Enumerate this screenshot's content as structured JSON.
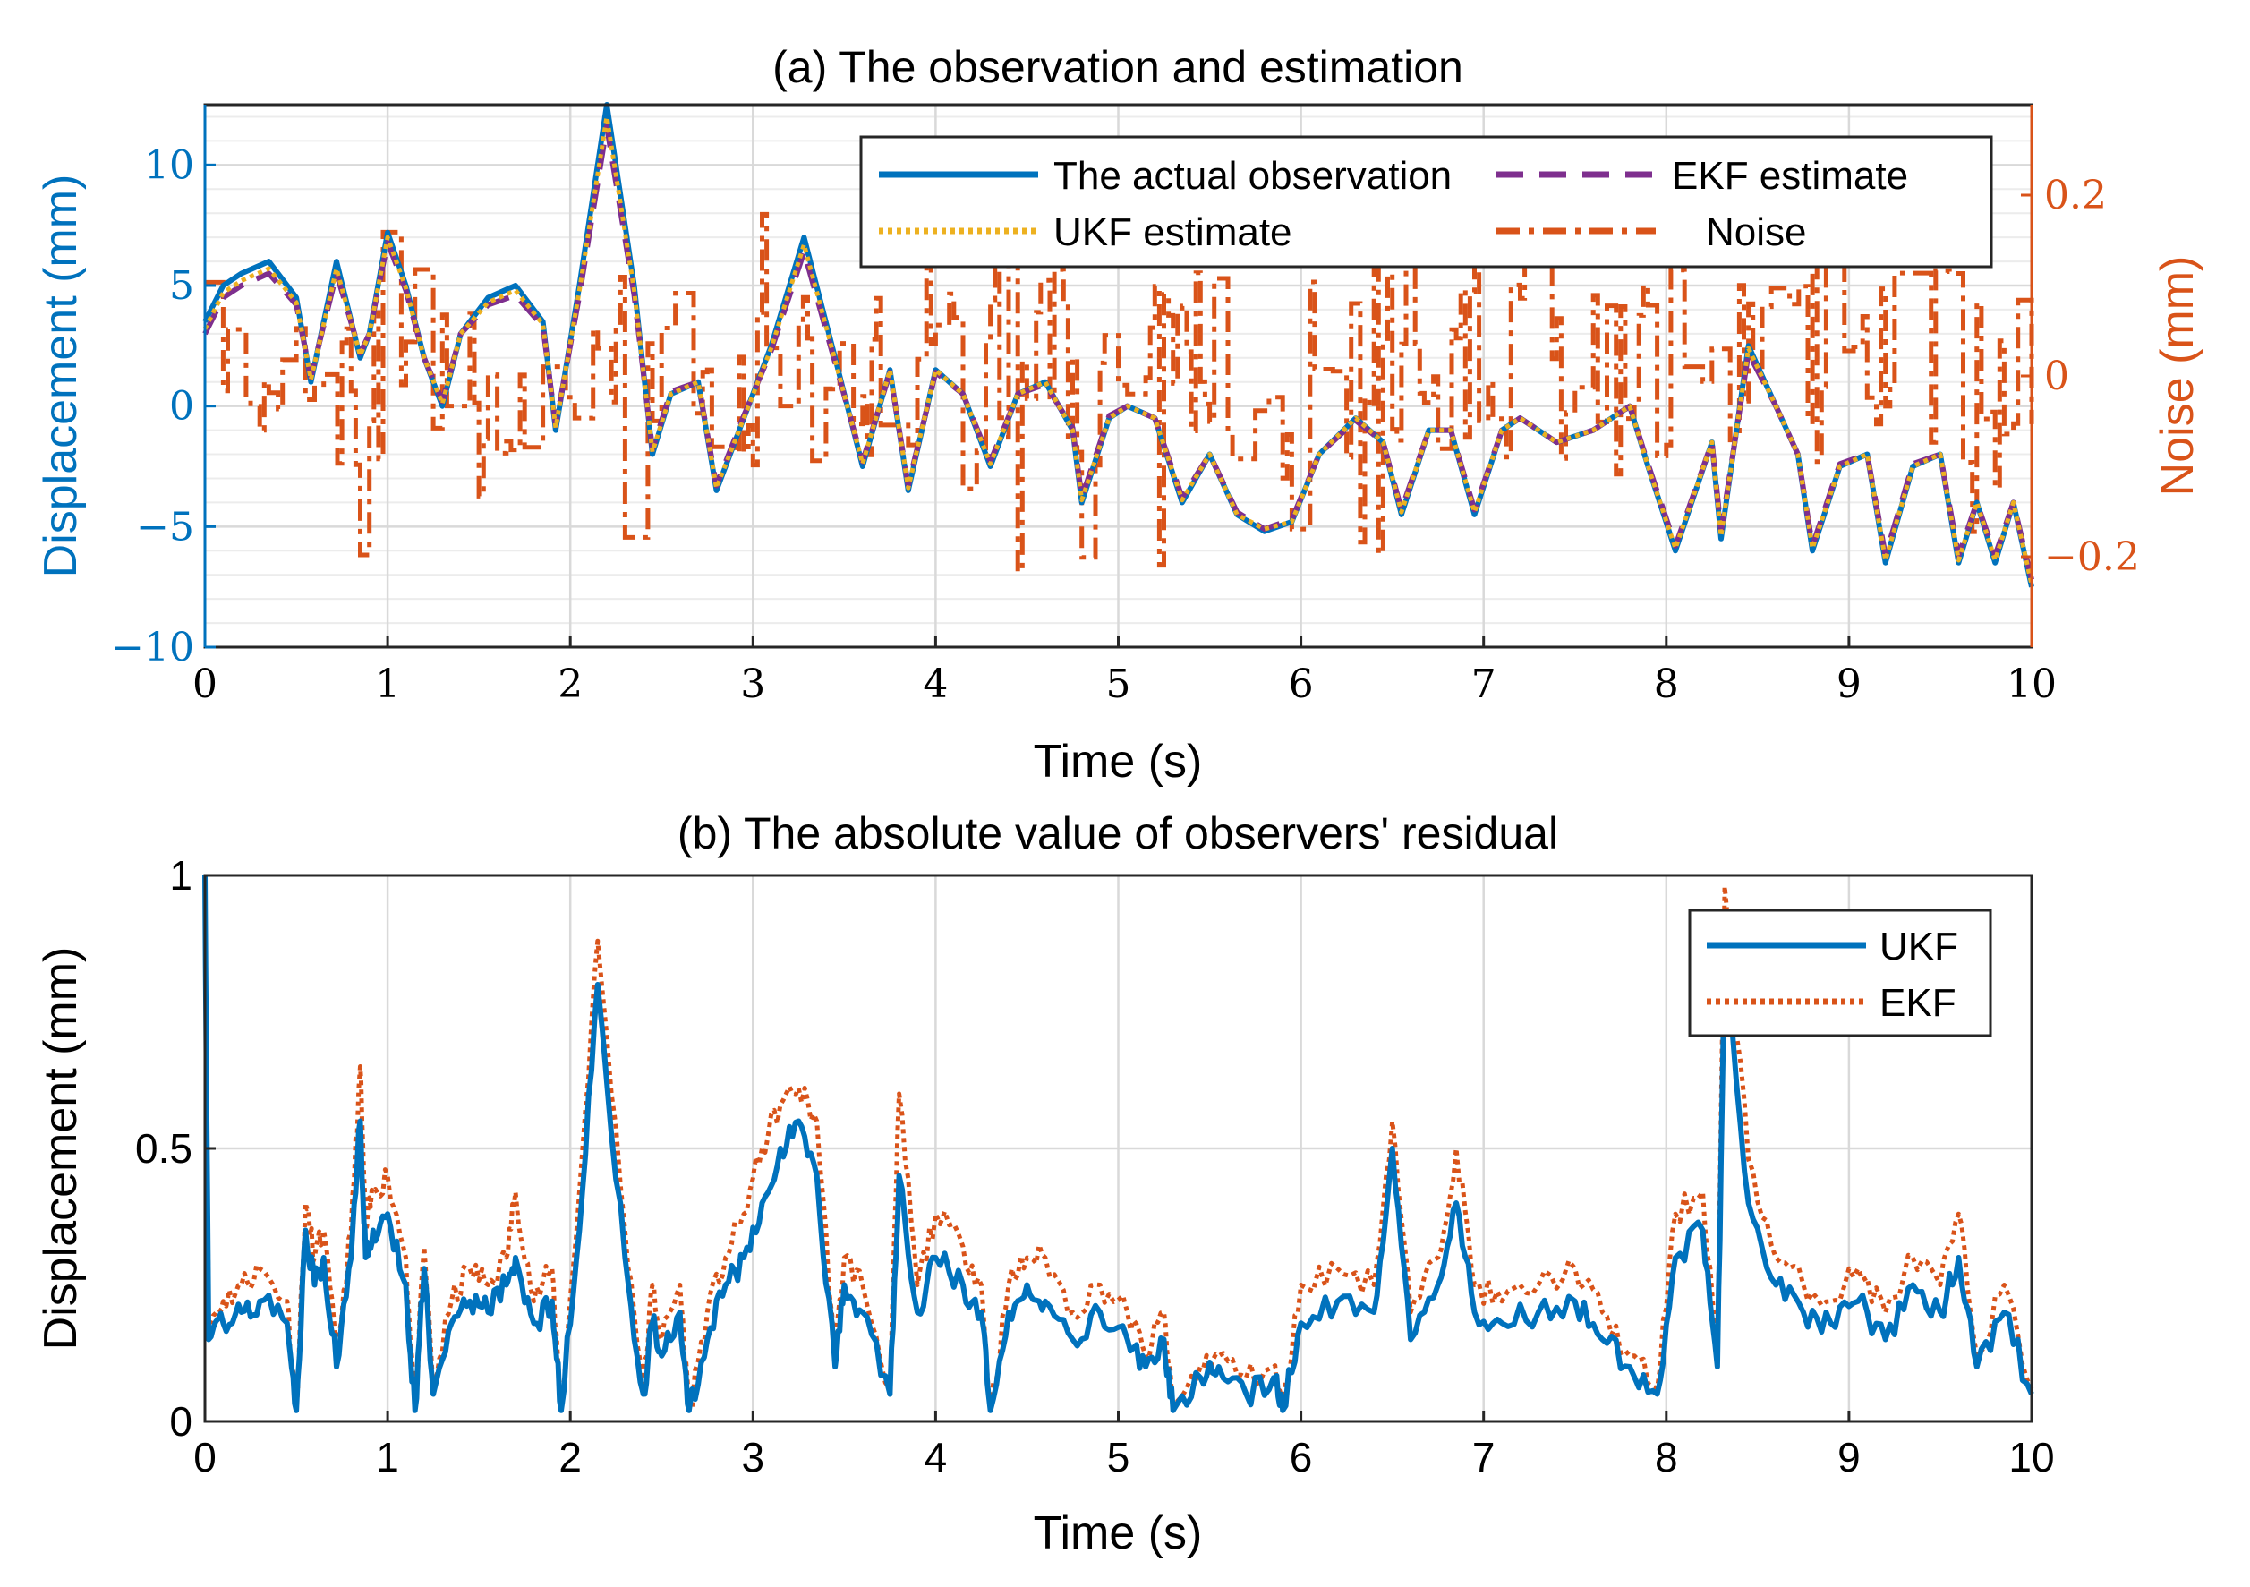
{
  "colors": {
    "blue": "#0072BD",
    "orange": "#D95319",
    "yellow": "#EDB120",
    "purple": "#7E2F8E",
    "axis": "#262626"
  },
  "chart_data": [
    {
      "type": "line",
      "title": "(a) The observation and estimation",
      "xlabel": "Time (s)",
      "ylabel": "Displacement (mm)",
      "ylabel_right": "Noise (mm)",
      "xlim": [
        0,
        10
      ],
      "ylim": [
        -10,
        12.5
      ],
      "ylim_right": [
        -0.3,
        0.3
      ],
      "xticks": [
        0,
        1,
        2,
        3,
        4,
        5,
        6,
        7,
        8,
        9,
        10
      ],
      "xtick_labels": [
        "0",
        "1",
        "2",
        "3",
        "4",
        "5",
        "6",
        "7",
        "8",
        "9",
        "10"
      ],
      "yticks": [
        -10,
        -5,
        0,
        5,
        10
      ],
      "ytick_labels": [
        "−10",
        "−5",
        "0",
        "5",
        "10"
      ],
      "yticks_right": [
        -0.2,
        0,
        0.2
      ],
      "ytick_labels_right": [
        "−0.2",
        "0",
        "0.2"
      ],
      "legend_position": "top-right",
      "legend": [
        "The actual observation",
        "EKF estimate",
        "UKF estimate",
        "Noise"
      ],
      "series": [
        {
          "name": "The actual observation",
          "axis": "left",
          "style": "solid",
          "x": [
            0,
            0.1,
            0.2,
            0.35,
            0.5,
            0.58,
            0.72,
            0.85,
            0.9,
            1.0,
            1.1,
            1.2,
            1.3,
            1.4,
            1.55,
            1.7,
            1.85,
            1.92,
            2.05,
            2.2,
            2.35,
            2.45,
            2.55,
            2.7,
            2.8,
            2.95,
            3.1,
            3.28,
            3.45,
            3.6,
            3.75,
            3.85,
            4.0,
            4.15,
            4.3,
            4.45,
            4.6,
            4.75,
            4.8,
            4.95,
            5.05,
            5.2,
            5.35,
            5.5,
            5.65,
            5.8,
            5.95,
            6.1,
            6.3,
            6.45,
            6.55,
            6.7,
            6.82,
            6.95,
            7.1,
            7.2,
            7.4,
            7.6,
            7.8,
            7.9,
            8.05,
            8.25,
            8.3,
            8.45,
            8.6,
            8.72,
            8.8,
            8.95,
            9.1,
            9.2,
            9.35,
            9.5,
            9.6,
            9.7,
            9.8,
            9.9,
            10.0
          ],
          "y": [
            3.5,
            5,
            5.5,
            6,
            4.5,
            1,
            6,
            2,
            3,
            7.2,
            5,
            2,
            0,
            3,
            4.5,
            5,
            3.5,
            -1,
            5,
            12.5,
            5,
            -2,
            0.5,
            1,
            -3.5,
            -0.5,
            2.5,
            7,
            2,
            -2.5,
            1.5,
            -3.5,
            1.5,
            0.5,
            -2.5,
            0.5,
            1,
            -1,
            -4,
            -0.5,
            0,
            -0.5,
            -4,
            -2,
            -4.5,
            -5.2,
            -4.8,
            -2,
            -0.5,
            -1.5,
            -4.5,
            -1,
            -1,
            -4.5,
            -1,
            -0.5,
            -1.5,
            -1,
            0,
            -2.5,
            -6,
            -1.5,
            -5.5,
            2.5,
            0,
            -2,
            -6,
            -2.5,
            -2,
            -6.5,
            -2.5,
            -2,
            -6.5,
            -4,
            -6.5,
            -4,
            -7.5
          ]
        },
        {
          "name": "EKF estimate",
          "axis": "left",
          "style": "dashed",
          "x": [
            0,
            0.1,
            0.2,
            0.35,
            0.5,
            0.58,
            0.72,
            0.85,
            0.9,
            1.0,
            1.1,
            1.2,
            1.3,
            1.4,
            1.55,
            1.7,
            1.85,
            1.92,
            2.05,
            2.2,
            2.35,
            2.45,
            2.55,
            2.7,
            2.8,
            2.95,
            3.1,
            3.28,
            3.45,
            3.6,
            3.75,
            3.85,
            4.0,
            4.15,
            4.3,
            4.45,
            4.6,
            4.75,
            4.8,
            4.95,
            5.05,
            5.2,
            5.35,
            5.5,
            5.65,
            5.8,
            5.95,
            6.1,
            6.3,
            6.45,
            6.55,
            6.7,
            6.82,
            6.95,
            7.1,
            7.2,
            7.4,
            7.6,
            7.8,
            7.9,
            8.05,
            8.25,
            8.3,
            8.45,
            8.6,
            8.72,
            8.8,
            8.95,
            9.1,
            9.2,
            9.35,
            9.5,
            9.6,
            9.7,
            9.8,
            9.9,
            10.0
          ],
          "y": [
            3,
            4.5,
            5,
            5.5,
            4.2,
            1.2,
            5.5,
            2.2,
            3,
            6.8,
            4.8,
            2,
            0.2,
            3,
            4.2,
            4.6,
            3.3,
            -0.8,
            4.6,
            11.6,
            4.6,
            -1.8,
            0.6,
            1,
            -3.3,
            -0.4,
            2.3,
            6.4,
            1.8,
            -2.3,
            1.4,
            -3.3,
            1.4,
            0.5,
            -2.3,
            0.5,
            0.9,
            -0.9,
            -3.8,
            -0.4,
            0,
            -0.5,
            -3.8,
            -2,
            -4.4,
            -5.1,
            -4.7,
            -2,
            -0.6,
            -1.5,
            -4.3,
            -1,
            -1,
            -4.3,
            -1,
            -0.5,
            -1.5,
            -1,
            0,
            -2.4,
            -5.8,
            -1.5,
            -5.2,
            2.2,
            0,
            -2,
            -5.8,
            -2.4,
            -2,
            -6.2,
            -2.4,
            -2,
            -6.2,
            -4,
            -6.2,
            -4,
            -7.2
          ]
        },
        {
          "name": "UKF estimate",
          "axis": "left",
          "style": "dotted",
          "x": [
            0,
            0.1,
            0.2,
            0.35,
            0.5,
            0.58,
            0.72,
            0.85,
            0.9,
            1.0,
            1.1,
            1.2,
            1.3,
            1.4,
            1.55,
            1.7,
            1.85,
            1.92,
            2.05,
            2.2,
            2.35,
            2.45,
            2.55,
            2.7,
            2.8,
            2.95,
            3.1,
            3.28,
            3.45,
            3.6,
            3.75,
            3.85,
            4.0,
            4.15,
            4.3,
            4.45,
            4.6,
            4.75,
            4.8,
            4.95,
            5.05,
            5.2,
            5.35,
            5.5,
            5.65,
            5.8,
            5.95,
            6.1,
            6.3,
            6.45,
            6.55,
            6.7,
            6.82,
            6.95,
            7.1,
            7.2,
            7.4,
            7.6,
            7.8,
            7.9,
            8.05,
            8.25,
            8.3,
            8.45,
            8.6,
            8.72,
            8.8,
            8.95,
            9.1,
            9.2,
            9.35,
            9.5,
            9.6,
            9.7,
            9.8,
            9.9,
            10.0
          ],
          "y": [
            3.2,
            4.7,
            5.2,
            5.7,
            4.3,
            1.1,
            5.7,
            2.1,
            3,
            7,
            4.9,
            2,
            0.1,
            3,
            4.3,
            4.8,
            3.4,
            -0.9,
            4.8,
            12,
            4.8,
            -1.9,
            0.5,
            1,
            -3.4,
            -0.5,
            2.4,
            6.7,
            1.9,
            -2.4,
            1.5,
            -3.4,
            1.5,
            0.5,
            -2.4,
            0.5,
            1,
            -1,
            -3.9,
            -0.5,
            0,
            -0.5,
            -3.9,
            -2,
            -4.5,
            -5.1,
            -4.8,
            -2,
            -0.5,
            -1.5,
            -4.4,
            -1,
            -1,
            -4.4,
            -1,
            -0.5,
            -1.5,
            -1,
            0,
            -2.5,
            -5.9,
            -1.5,
            -5.4,
            2.4,
            0,
            -2,
            -5.9,
            -2.5,
            -2,
            -6.4,
            -2.5,
            -2,
            -6.4,
            -4,
            -6.4,
            -4,
            -7.4
          ]
        },
        {
          "name": "Noise",
          "axis": "right",
          "style": "dashdot",
          "description": "random noise, approximately within -0.2 to 0.18 mm, centered near 0",
          "range": [
            -0.22,
            0.18
          ]
        }
      ]
    },
    {
      "type": "line",
      "title": "(b) The absolute value of observers' residual",
      "xlabel": "Time (s)",
      "ylabel": "Displacement (mm)",
      "xlim": [
        0,
        10
      ],
      "ylim": [
        0,
        1
      ],
      "xticks": [
        0,
        1,
        2,
        3,
        4,
        5,
        6,
        7,
        8,
        9,
        10
      ],
      "xtick_labels": [
        "0",
        "1",
        "2",
        "3",
        "4",
        "5",
        "6",
        "7",
        "8",
        "9",
        "10"
      ],
      "yticks": [
        0,
        0.5,
        1
      ],
      "ytick_labels": [
        "0",
        "0.5",
        "1"
      ],
      "legend_position": "top-right",
      "legend": [
        "UKF",
        "EKF"
      ],
      "series": [
        {
          "name": "UKF",
          "style": "solid",
          "x": [
            0,
            0.02,
            0.1,
            0.2,
            0.3,
            0.45,
            0.5,
            0.55,
            0.6,
            0.65,
            0.72,
            0.8,
            0.85,
            0.88,
            0.92,
            1.0,
            1.1,
            1.15,
            1.2,
            1.25,
            1.35,
            1.45,
            1.55,
            1.65,
            1.7,
            1.8,
            1.9,
            1.95,
            2.05,
            2.15,
            2.3,
            2.4,
            2.45,
            2.5,
            2.6,
            2.65,
            2.75,
            2.85,
            2.95,
            3.05,
            3.15,
            3.25,
            3.35,
            3.45,
            3.5,
            3.6,
            3.75,
            3.8,
            3.9,
            4.0,
            4.15,
            4.25,
            4.3,
            4.4,
            4.5,
            4.6,
            4.75,
            4.9,
            5.05,
            5.15,
            5.25,
            5.3,
            5.45,
            5.55,
            5.7,
            5.85,
            5.9,
            6.0,
            6.2,
            6.4,
            6.5,
            6.6,
            6.75,
            6.85,
            6.95,
            7.1,
            7.3,
            7.5,
            7.65,
            7.8,
            7.95,
            8.05,
            8.2,
            8.28,
            8.32,
            8.45,
            8.6,
            8.75,
            8.9,
            9.05,
            9.2,
            9.35,
            9.5,
            9.6,
            9.7,
            9.85,
            10.0
          ],
          "y": [
            1.0,
            0.15,
            0.18,
            0.2,
            0.22,
            0.18,
            0.02,
            0.35,
            0.25,
            0.3,
            0.1,
            0.3,
            0.55,
            0.3,
            0.35,
            0.38,
            0.25,
            0.02,
            0.28,
            0.05,
            0.18,
            0.22,
            0.2,
            0.25,
            0.3,
            0.18,
            0.22,
            0.02,
            0.35,
            0.8,
            0.3,
            0.05,
            0.18,
            0.12,
            0.2,
            0.02,
            0.15,
            0.25,
            0.3,
            0.4,
            0.5,
            0.55,
            0.45,
            0.1,
            0.25,
            0.2,
            0.05,
            0.45,
            0.2,
            0.3,
            0.25,
            0.2,
            0.02,
            0.2,
            0.25,
            0.22,
            0.15,
            0.2,
            0.15,
            0.1,
            0.15,
            0.02,
            0.08,
            0.1,
            0.05,
            0.08,
            0.02,
            0.18,
            0.22,
            0.2,
            0.5,
            0.15,
            0.25,
            0.4,
            0.2,
            0.18,
            0.2,
            0.22,
            0.15,
            0.1,
            0.05,
            0.3,
            0.35,
            0.1,
            0.85,
            0.4,
            0.25,
            0.2,
            0.18,
            0.22,
            0.15,
            0.25,
            0.2,
            0.3,
            0.1,
            0.2,
            0.05
          ]
        },
        {
          "name": "EKF",
          "style": "dotted",
          "x": [
            0,
            0.02,
            0.1,
            0.2,
            0.3,
            0.45,
            0.5,
            0.55,
            0.6,
            0.65,
            0.72,
            0.8,
            0.85,
            0.88,
            0.92,
            1.0,
            1.1,
            1.15,
            1.2,
            1.25,
            1.35,
            1.45,
            1.55,
            1.65,
            1.7,
            1.8,
            1.9,
            1.95,
            2.05,
            2.15,
            2.3,
            2.4,
            2.45,
            2.5,
            2.6,
            2.65,
            2.75,
            2.85,
            2.95,
            3.05,
            3.15,
            3.25,
            3.35,
            3.45,
            3.5,
            3.6,
            3.75,
            3.8,
            3.9,
            4.0,
            4.15,
            4.25,
            4.3,
            4.4,
            4.5,
            4.6,
            4.75,
            4.9,
            5.05,
            5.15,
            5.25,
            5.3,
            5.45,
            5.55,
            5.7,
            5.85,
            5.9,
            6.0,
            6.2,
            6.4,
            6.5,
            6.6,
            6.75,
            6.85,
            6.95,
            7.1,
            7.3,
            7.5,
            7.65,
            7.8,
            7.95,
            8.05,
            8.2,
            8.28,
            8.32,
            8.45,
            8.6,
            8.75,
            8.9,
            9.05,
            9.2,
            9.35,
            9.5,
            9.6,
            9.7,
            9.85,
            10.0
          ],
          "y": [
            1.0,
            0.18,
            0.22,
            0.25,
            0.28,
            0.22,
            0.02,
            0.4,
            0.3,
            0.35,
            0.12,
            0.35,
            0.65,
            0.35,
            0.42,
            0.45,
            0.3,
            0.02,
            0.32,
            0.06,
            0.22,
            0.28,
            0.25,
            0.3,
            0.42,
            0.22,
            0.28,
            0.02,
            0.42,
            0.88,
            0.35,
            0.06,
            0.25,
            0.15,
            0.25,
            0.02,
            0.2,
            0.3,
            0.38,
            0.5,
            0.58,
            0.61,
            0.55,
            0.12,
            0.3,
            0.25,
            0.06,
            0.6,
            0.25,
            0.38,
            0.32,
            0.25,
            0.02,
            0.25,
            0.3,
            0.3,
            0.2,
            0.25,
            0.2,
            0.12,
            0.2,
            0.02,
            0.1,
            0.12,
            0.08,
            0.1,
            0.02,
            0.25,
            0.28,
            0.25,
            0.55,
            0.2,
            0.3,
            0.5,
            0.25,
            0.22,
            0.25,
            0.28,
            0.2,
            0.12,
            0.06,
            0.38,
            0.42,
            0.12,
            0.98,
            0.48,
            0.3,
            0.25,
            0.22,
            0.28,
            0.2,
            0.3,
            0.25,
            0.38,
            0.12,
            0.25,
            0.06
          ]
        }
      ]
    }
  ]
}
